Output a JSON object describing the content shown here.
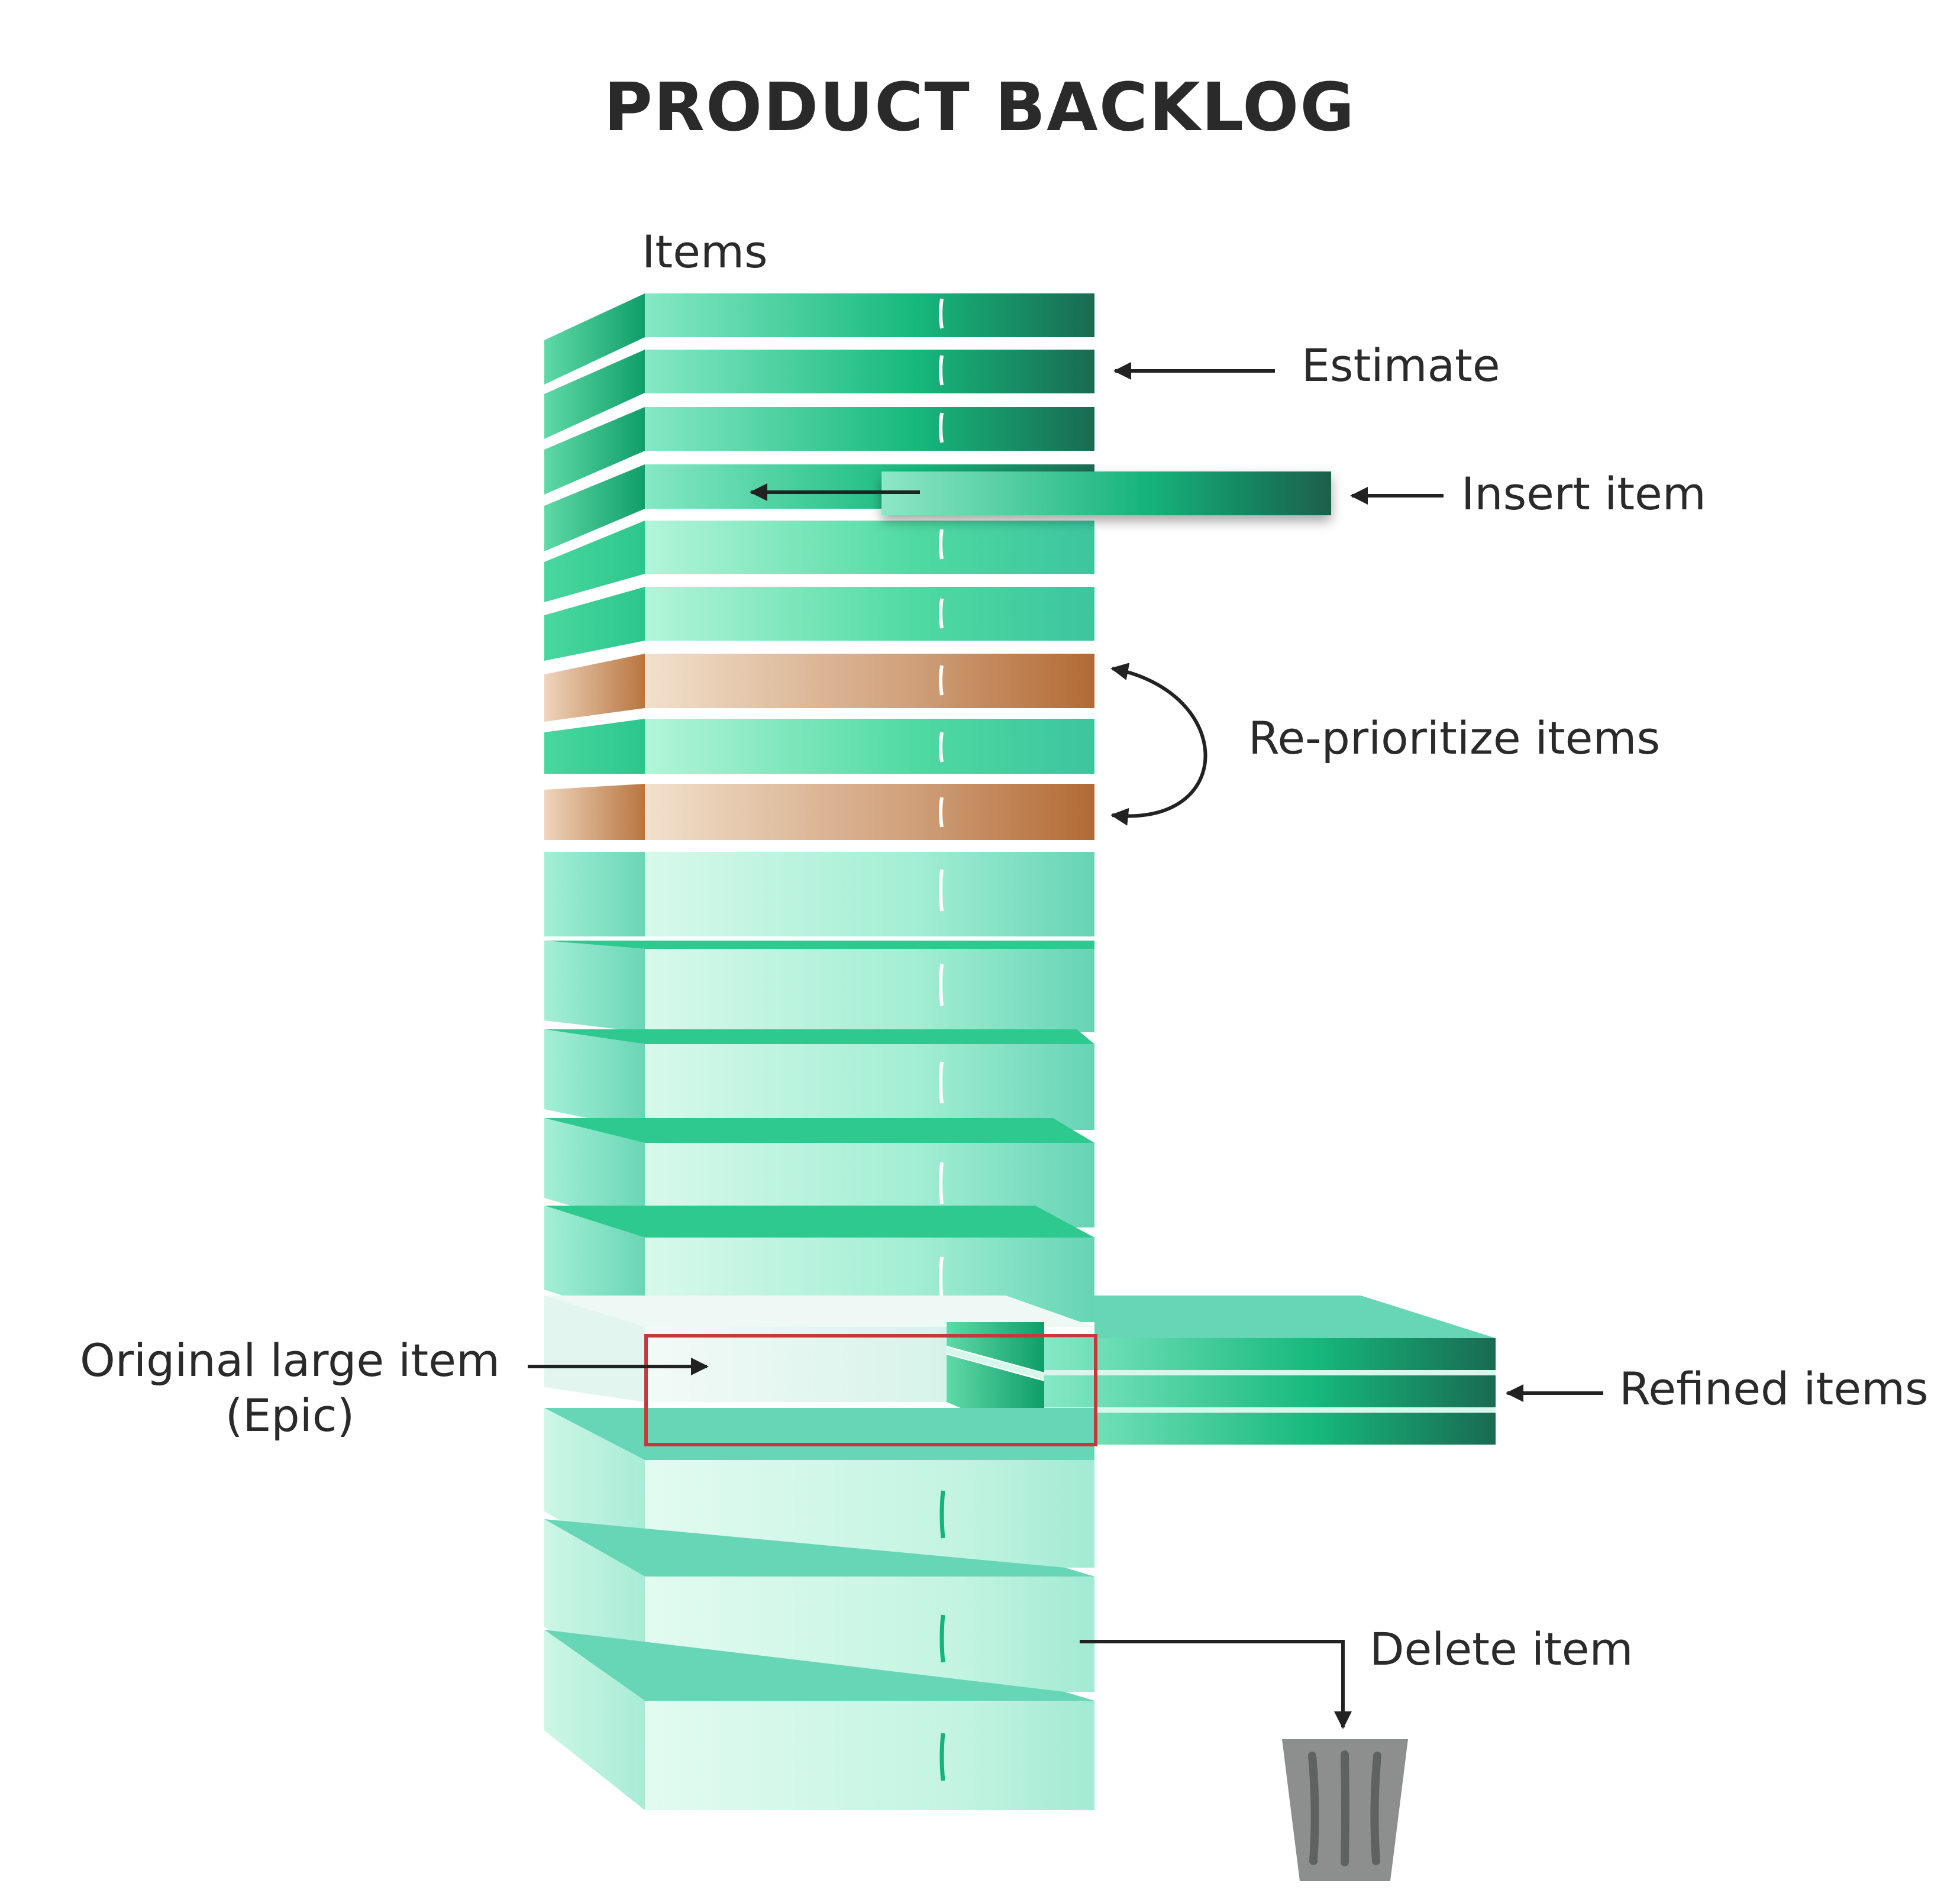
{
  "title": "PRODUCT BACKLOG",
  "labels": {
    "items": "Items",
    "estimate": "Estimate",
    "insert_item": "Insert item",
    "reprioritize_items": "Re-prioritize items",
    "original_large_item_line1": "Original large item",
    "original_large_item_line2": "(Epic)",
    "refined_items": "Refined items",
    "delete_item": "Delete item"
  },
  "icons": {
    "trash": "trash-can-icon"
  },
  "colors": {
    "green_dark": "#1e6b55",
    "green_mid": "#14b57a",
    "green_light": "#7fe3c0",
    "green_pale": "#d8f8ec",
    "tan_light": "#f0dcc6",
    "tan_dark": "#b06a35",
    "highlight_red": "#c8383a",
    "arrow": "#222222",
    "trash_gray": "#8c8f8d"
  }
}
